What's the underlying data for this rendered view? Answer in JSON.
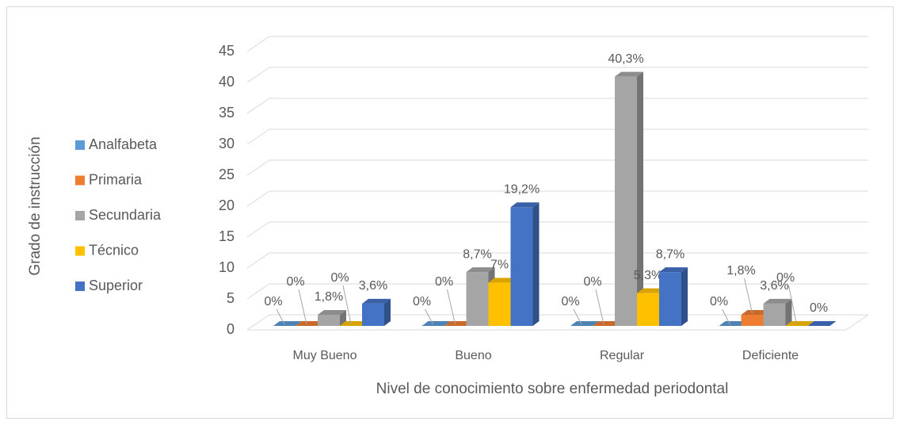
{
  "chart_data": {
    "type": "bar3d",
    "x_label": "Nivel de conocimiento sobre enfermedad periodontal",
    "y_label": "Grado de instrucción",
    "categories": [
      "Muy Bueno",
      "Bueno",
      "Regular",
      "Deficiente"
    ],
    "series": [
      {
        "name": "Analfabeta",
        "color": "#5b9bd5",
        "values": [
          0,
          0,
          0,
          0
        ],
        "value_labels": [
          "0%",
          "0%",
          "0%",
          "0%"
        ]
      },
      {
        "name": "Primaria",
        "color": "#ed7d31",
        "values": [
          0,
          0,
          0,
          1.8
        ],
        "value_labels": [
          "0%",
          "0%",
          "0%",
          "1,8%"
        ]
      },
      {
        "name": "Secundaria",
        "color": "#a5a5a5",
        "values": [
          1.8,
          8.7,
          40.3,
          3.6
        ],
        "value_labels": [
          "1,8%",
          "8,7%",
          "40,3%",
          "3,6%"
        ]
      },
      {
        "name": "Técnico",
        "color": "#ffc000",
        "values": [
          0,
          7,
          5.3,
          0
        ],
        "value_labels": [
          "0%",
          "7%",
          "5,3%",
          "0%"
        ]
      },
      {
        "name": "Superior",
        "color": "#4472c4",
        "values": [
          3.6,
          19.2,
          8.7,
          0
        ],
        "value_labels": [
          "3,6%",
          "19,2%",
          "8,7%",
          "0%"
        ]
      }
    ],
    "ylim": [
      0,
      45
    ],
    "yticks": [
      0,
      5,
      10,
      15,
      20,
      25,
      30,
      35,
      40,
      45
    ],
    "grid": true,
    "legend": "left"
  }
}
